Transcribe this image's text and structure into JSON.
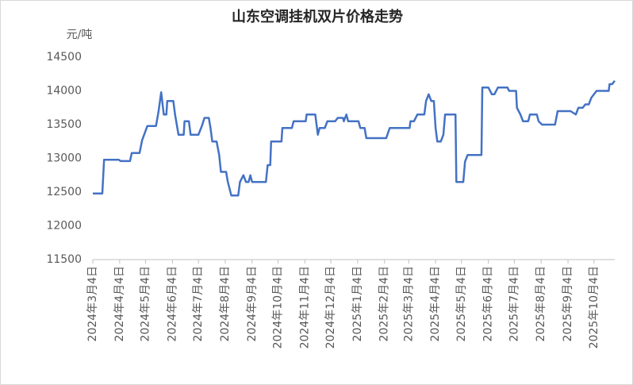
{
  "chart_data": {
    "type": "line",
    "title": "山东空调挂机双片价格走势",
    "y_label": "元/吨",
    "x": [
      "2024-03-04",
      "2024-03-15",
      "2024-03-17",
      "2024-04-03",
      "2024-04-05",
      "2024-04-16",
      "2024-04-18",
      "2024-04-27",
      "2024-04-30",
      "2024-05-06",
      "2024-05-16",
      "2024-05-19",
      "2024-05-22",
      "2024-05-25",
      "2024-05-28",
      "2024-05-29",
      "2024-06-05",
      "2024-06-07",
      "2024-06-11",
      "2024-06-17",
      "2024-06-18",
      "2024-06-23",
      "2024-06-25",
      "2024-07-04",
      "2024-07-08",
      "2024-07-11",
      "2024-07-16",
      "2024-07-18",
      "2024-07-20",
      "2024-07-25",
      "2024-07-28",
      "2024-07-30",
      "2024-08-05",
      "2024-08-07",
      "2024-08-11",
      "2024-08-19",
      "2024-08-21",
      "2024-08-25",
      "2024-08-28",
      "2024-08-31",
      "2024-09-02",
      "2024-09-04",
      "2024-09-20",
      "2024-09-22",
      "2024-09-25",
      "2024-09-26",
      "2024-10-08",
      "2024-10-09",
      "2024-10-20",
      "2024-10-22",
      "2024-11-05",
      "2024-11-06",
      "2024-11-16",
      "2024-11-17",
      "2024-11-19",
      "2024-11-21",
      "2024-11-27",
      "2024-11-30",
      "2024-12-09",
      "2024-12-12",
      "2024-12-18",
      "2024-12-19",
      "2024-12-22",
      "2024-12-24",
      "2025-01-05",
      "2025-01-07",
      "2025-01-12",
      "2025-01-14",
      "2025-02-06",
      "2025-02-10",
      "2025-03-05",
      "2025-03-06",
      "2025-03-10",
      "2025-03-14",
      "2025-03-22",
      "2025-03-24",
      "2025-03-27",
      "2025-03-30",
      "2025-04-02",
      "2025-04-04",
      "2025-04-06",
      "2025-04-10",
      "2025-04-13",
      "2025-04-15",
      "2025-04-27",
      "2025-04-28",
      "2025-05-06",
      "2025-05-08",
      "2025-05-11",
      "2025-05-27",
      "2025-05-28",
      "2025-06-04",
      "2025-06-08",
      "2025-06-11",
      "2025-06-15",
      "2025-06-26",
      "2025-06-28",
      "2025-07-06",
      "2025-07-07",
      "2025-07-11",
      "2025-07-14",
      "2025-07-20",
      "2025-07-22",
      "2025-07-30",
      "2025-08-01",
      "2025-08-05",
      "2025-08-20",
      "2025-08-23",
      "2025-09-07",
      "2025-09-13",
      "2025-09-16",
      "2025-09-21",
      "2025-09-24",
      "2025-09-28",
      "2025-10-01",
      "2025-10-07",
      "2025-10-21",
      "2025-10-22",
      "2025-10-25",
      "2025-10-28"
    ],
    "series": [
      {
        "color": "#4472c4",
        "values": [
          12480,
          12480,
          12980,
          12980,
          12960,
          12960,
          13080,
          13080,
          13270,
          13480,
          13480,
          13700,
          13980,
          13650,
          13650,
          13850,
          13850,
          13650,
          13350,
          13350,
          13550,
          13550,
          13350,
          13350,
          13480,
          13600,
          13600,
          13450,
          13250,
          13250,
          13050,
          12800,
          12800,
          12650,
          12450,
          12450,
          12650,
          12750,
          12650,
          12650,
          12750,
          12650,
          12650,
          12900,
          12900,
          13250,
          13250,
          13450,
          13450,
          13550,
          13550,
          13650,
          13650,
          13550,
          13350,
          13450,
          13450,
          13550,
          13550,
          13600,
          13600,
          13550,
          13650,
          13550,
          13550,
          13450,
          13450,
          13300,
          13300,
          13450,
          13450,
          13550,
          13550,
          13650,
          13650,
          13850,
          13950,
          13850,
          13850,
          13450,
          13250,
          13250,
          13350,
          13650,
          13650,
          12650,
          12650,
          12950,
          13050,
          13050,
          14050,
          14050,
          13950,
          13950,
          14050,
          14050,
          14000,
          14000,
          13750,
          13650,
          13550,
          13550,
          13650,
          13650,
          13550,
          13500,
          13500,
          13700,
          13700,
          13650,
          13750,
          13750,
          13800,
          13800,
          13900,
          14000,
          14000,
          14100,
          14100,
          14150
        ]
      }
    ],
    "xlim": [
      "2024-03-04",
      "2025-10-28"
    ],
    "xticks": [
      {
        "value": "2024-03-04",
        "label": "2024年3月4日"
      },
      {
        "value": "2024-04-04",
        "label": "2024年4月4日"
      },
      {
        "value": "2024-05-04",
        "label": "2024年5月4日"
      },
      {
        "value": "2024-06-04",
        "label": "2024年6月4日"
      },
      {
        "value": "2024-07-04",
        "label": "2024年7月4日"
      },
      {
        "value": "2024-08-04",
        "label": "2024年8月4日"
      },
      {
        "value": "2024-09-04",
        "label": "2024年9月4日"
      },
      {
        "value": "2024-10-04",
        "label": "2024年10月4日"
      },
      {
        "value": "2024-11-04",
        "label": "2024年11月4日"
      },
      {
        "value": "2024-12-04",
        "label": "2024年12月4日"
      },
      {
        "value": "2025-01-04",
        "label": "2025年1月4日"
      },
      {
        "value": "2025-02-04",
        "label": "2025年2月4日"
      },
      {
        "value": "2025-03-04",
        "label": "2025年3月4日"
      },
      {
        "value": "2025-04-04",
        "label": "2025年4月4日"
      },
      {
        "value": "2025-05-04",
        "label": "2025年5月4日"
      },
      {
        "value": "2025-06-04",
        "label": "2025年6月4日"
      },
      {
        "value": "2025-07-04",
        "label": "2025年7月4日"
      },
      {
        "value": "2025-08-04",
        "label": "2025年8月4日"
      },
      {
        "value": "2025-09-04",
        "label": "2025年9月4日"
      },
      {
        "value": "2025-10-04",
        "label": "2025年10月4日"
      }
    ],
    "ylim": [
      11500,
      14500
    ],
    "yticks": [
      11500,
      12000,
      12500,
      13000,
      13500,
      14000,
      14500
    ],
    "grid": false
  }
}
